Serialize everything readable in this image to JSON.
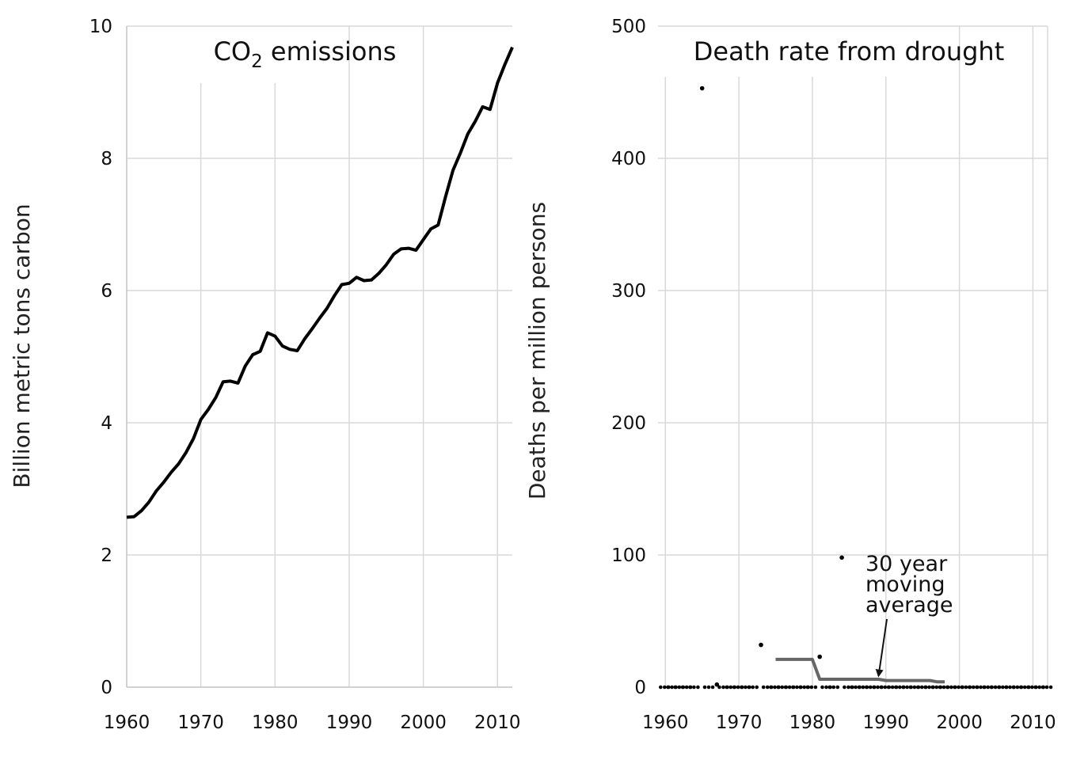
{
  "chart_data": [
    {
      "type": "line",
      "title": "CO2 emissions",
      "title_main": "CO",
      "title_sub": "2",
      "title_rest": " emissions",
      "ylabel": "Billion metric tons carbon",
      "xlabel": "",
      "xlim": [
        1960,
        2012
      ],
      "ylim": [
        0,
        10
      ],
      "xticks": [
        "1960",
        "1970",
        "1980",
        "1990",
        "2000",
        "2010"
      ],
      "yticks": [
        "0",
        "2",
        "4",
        "6",
        "8",
        "10"
      ],
      "grid": true,
      "color": "#000000",
      "series": [
        {
          "x": [
            1960,
            1961,
            1962,
            1963,
            1964,
            1965,
            1966,
            1967,
            1968,
            1969,
            1970,
            1971,
            1972,
            1973,
            1974,
            1975,
            1976,
            1977,
            1978,
            1979,
            1980,
            1981,
            1982,
            1983,
            1984,
            1985,
            1986,
            1987,
            1988,
            1989,
            1990,
            1991,
            1992,
            1993,
            1994,
            1995,
            1996,
            1997,
            1998,
            1999,
            2000,
            2001,
            2002,
            2003,
            2004,
            2005,
            2006,
            2007,
            2008,
            2009,
            2010,
            2011,
            2012
          ],
          "y": [
            2.57,
            2.58,
            2.67,
            2.8,
            2.97,
            3.1,
            3.25,
            3.38,
            3.55,
            3.76,
            4.05,
            4.2,
            4.38,
            4.62,
            4.63,
            4.6,
            4.86,
            5.03,
            5.08,
            5.36,
            5.31,
            5.16,
            5.11,
            5.09,
            5.27,
            5.42,
            5.58,
            5.73,
            5.92,
            6.09,
            6.11,
            6.2,
            6.15,
            6.16,
            6.26,
            6.39,
            6.55,
            6.63,
            6.64,
            6.61,
            6.77,
            6.93,
            6.99,
            7.42,
            7.82,
            8.08,
            8.37,
            8.56,
            8.78,
            8.74,
            9.14,
            9.42,
            9.68
          ]
        }
      ]
    },
    {
      "type": "scatter",
      "title": "Death rate from drought",
      "ylabel": "Deaths per million persons",
      "xlabel": "",
      "xlim": [
        1959,
        2012
      ],
      "ylim": [
        0,
        500
      ],
      "xticks": [
        "1960",
        "1970",
        "1980",
        "1990",
        "2000",
        "2010"
      ],
      "yticks": [
        "0",
        "100",
        "200",
        "300",
        "400",
        "500"
      ],
      "grid": true,
      "points_color": "#000000",
      "points": {
        "x": [
          1960,
          1961,
          1962,
          1963,
          1964,
          1965,
          1966,
          1967,
          1968,
          1969,
          1970,
          1971,
          1972,
          1973,
          1974,
          1975,
          1976,
          1977,
          1978,
          1979,
          1980,
          1981,
          1982,
          1983,
          1984,
          1985,
          1986,
          1987,
          1988,
          1989,
          1990,
          1991,
          1992,
          1993,
          1994,
          1995,
          1996,
          1997,
          1998,
          1999,
          2000,
          2001,
          2002,
          2003,
          2004,
          2005,
          2006,
          2007,
          2008,
          2009,
          2010,
          2011,
          2012
        ],
        "y": [
          0,
          0,
          0,
          0,
          0,
          453,
          0,
          2,
          0,
          0,
          0,
          0,
          0,
          32,
          0,
          0,
          0,
          0,
          0,
          0,
          0,
          23,
          0,
          0,
          98,
          0,
          0,
          0,
          0,
          0,
          0,
          0,
          0,
          0,
          0,
          0,
          0,
          0,
          0,
          0,
          0,
          0,
          0,
          0,
          0,
          0,
          0,
          0,
          0,
          0,
          0,
          0,
          0
        ]
      },
      "moving_average": {
        "color": "#666666",
        "x": [
          1975,
          1980,
          1981,
          1989,
          1990,
          1996,
          1997,
          1998
        ],
        "y": [
          21,
          21,
          6,
          6,
          5,
          5,
          4,
          4
        ]
      },
      "annotation": {
        "lines": [
          "30 year",
          "moving",
          "average"
        ],
        "arrow_to": [
          1989,
          5
        ]
      }
    }
  ]
}
